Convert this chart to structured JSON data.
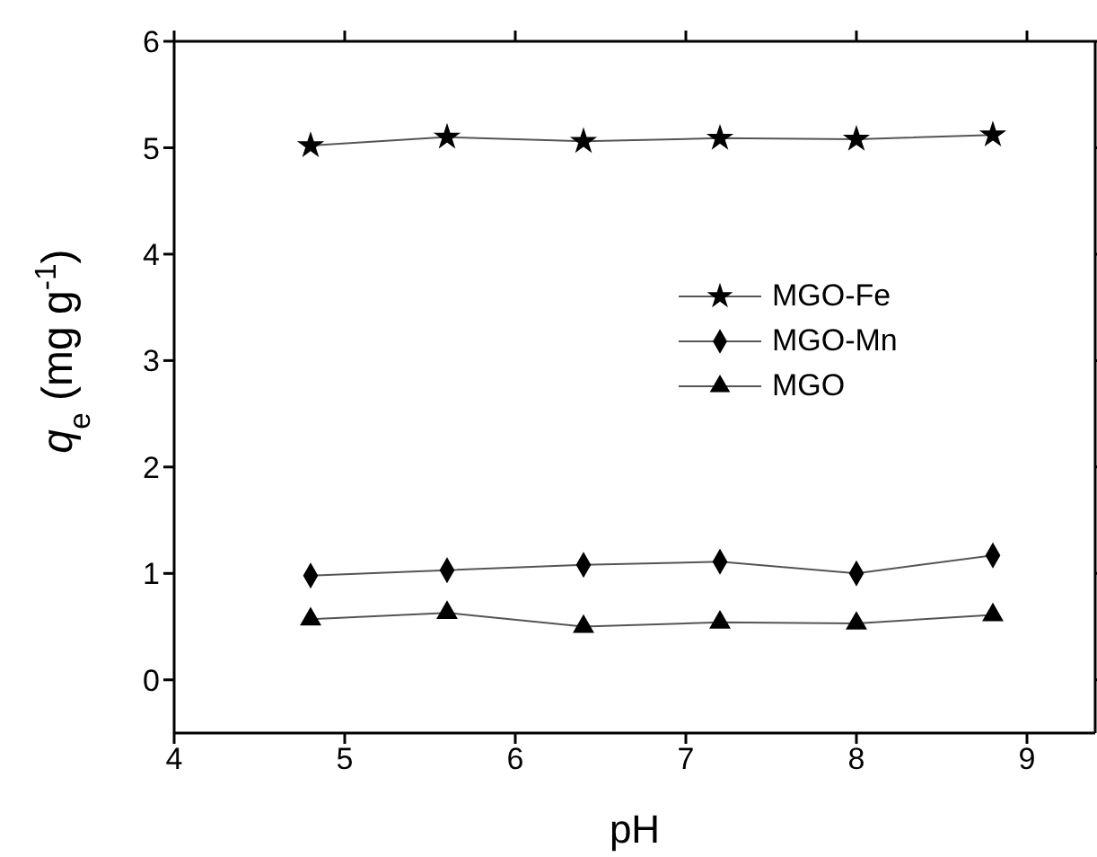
{
  "chart_data": {
    "type": "line",
    "xlabel": "pH",
    "ylabel": "q$_{e}$ (mg g$^{-1}$)",
    "x": [
      4.8,
      5.6,
      6.4,
      7.2,
      8.0,
      8.8
    ],
    "series": [
      {
        "name": "MGO-Fe",
        "color": "#000000",
        "marker": "star",
        "values": [
          5.02,
          5.1,
          5.06,
          5.09,
          5.08,
          5.12
        ]
      },
      {
        "name": "MGO-Mn",
        "color": "#000000",
        "marker": "diamond",
        "values": [
          0.98,
          1.03,
          1.08,
          1.11,
          1.0,
          1.17
        ]
      },
      {
        "name": "MGO",
        "color": "#000000",
        "marker": "triangle",
        "values": [
          0.57,
          0.63,
          0.5,
          0.54,
          0.53,
          0.61
        ]
      }
    ],
    "xlim": [
      4,
      9.4
    ],
    "xticks": [
      4,
      5,
      6,
      7,
      8,
      9
    ],
    "ylim": [
      -0.5,
      6
    ],
    "yticks": [
      0,
      1,
      2,
      3,
      4,
      5,
      6
    ],
    "grid": false,
    "legend": "right",
    "line_style": "solid"
  }
}
